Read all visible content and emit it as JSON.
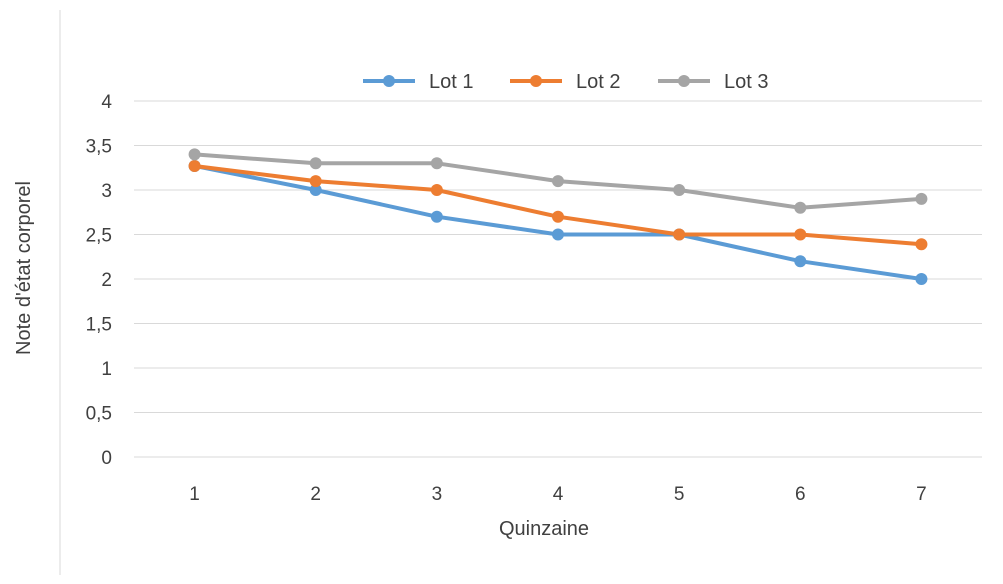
{
  "chart_data": {
    "type": "line",
    "title": "",
    "xlabel": "Quinzaine",
    "ylabel": "Note d'état corporel",
    "categories": [
      "1",
      "2",
      "3",
      "4",
      "5",
      "6",
      "7"
    ],
    "y_ticks": [
      "0",
      "0,5",
      "1",
      "1,5",
      "2",
      "2,5",
      "3",
      "3,5",
      "4"
    ],
    "ylim": [
      0,
      4
    ],
    "grid": true,
    "legend_position": "top",
    "series": [
      {
        "name": "Lot 1",
        "color": "#5b9bd5",
        "values": [
          3.27,
          3.0,
          2.7,
          2.5,
          2.5,
          2.2,
          2.0
        ]
      },
      {
        "name": "Lot 2",
        "color": "#ed7d31",
        "values": [
          3.27,
          3.1,
          3.0,
          2.7,
          2.5,
          2.5,
          2.39
        ]
      },
      {
        "name": "Lot 3",
        "color": "#a5a5a5",
        "values": [
          3.4,
          3.3,
          3.3,
          3.1,
          3.0,
          2.8,
          2.9
        ]
      }
    ]
  }
}
